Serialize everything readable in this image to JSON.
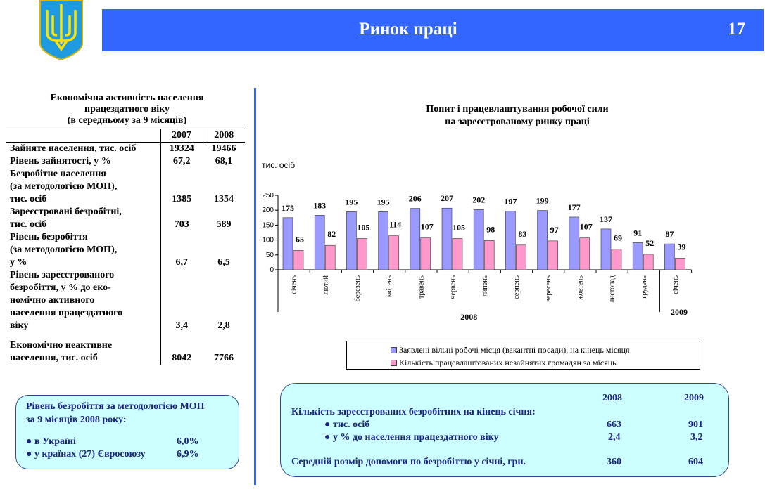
{
  "header": {
    "title": "Ринок праці",
    "page_number": "17"
  },
  "left_table": {
    "title": [
      "Економічна активність населення",
      "працездатного віку",
      "(в середньому за 9 місяців)"
    ],
    "columns": [
      "2007",
      "2008"
    ],
    "rows": [
      {
        "label": [
          "Зайняте населення, тис. осіб"
        ],
        "v2007": "19324",
        "v2008": "19466"
      },
      {
        "label": [
          "Рівень зайнятості, у %"
        ],
        "v2007": "67,2",
        "v2008": "68,1"
      },
      {
        "label": [
          "Безробітне населення",
          "(за методологією МОП),",
          "тис. осіб"
        ],
        "v2007": "1385",
        "v2008": "1354"
      },
      {
        "label": [
          "Зареєстровані безробітні,",
          "тис. осіб"
        ],
        "v2007": "703",
        "v2008": "589"
      },
      {
        "label": [
          "Рівень безробіття",
          "(за методологією МОП),",
          " у %"
        ],
        "v2007": "6,7",
        "v2008": "6,5"
      },
      {
        "label": [
          "Рівень зареєстрованого",
          "безробіття, у % до еко-",
          "номічно активного",
          "населення працездатного",
          "віку"
        ],
        "v2007": "3,4",
        "v2008": "2,8"
      },
      {
        "label": [
          "Економічно неактивне",
          "населення, тис. осіб"
        ],
        "v2007": "8042",
        "v2008": "7766"
      }
    ]
  },
  "left_box": {
    "title": [
      "Рівень безробіття за методологією МОП",
      "за  9 місяців 2008 року:"
    ],
    "items": [
      {
        "label": "● в Україні",
        "value": "6,0%"
      },
      {
        "label": "● у країнах (27) Євросоюзу",
        "value": "6,9%"
      }
    ]
  },
  "chart_data": {
    "type": "bar",
    "title": [
      "Попит і працевлаштування робочої сили",
      "на зареєстрованому ринку праці"
    ],
    "ylabel": "тис. осіб",
    "ylim": [
      0,
      250
    ],
    "yticks": [
      0,
      50,
      100,
      150,
      200,
      250
    ],
    "categories": [
      "січень",
      "лютий",
      "березень",
      "квітень",
      "травень",
      "червень",
      "липень",
      "серпень",
      "вересень",
      "жовтень",
      "листопад",
      "грудень",
      "січень"
    ],
    "year_groups": [
      {
        "label": "2008",
        "count": 12
      },
      {
        "label": "2009",
        "count": 1
      }
    ],
    "series": [
      {
        "name": "Заявлені вільні робочі місця (вакантні посади), на кінець місяця",
        "color": "#9999ff",
        "values": [
          175,
          183,
          195,
          195,
          206,
          207,
          202,
          197,
          199,
          177,
          137,
          91,
          87
        ]
      },
      {
        "name": "Кількість працевлаштованих незайнятих громадян за місяць",
        "color": "#ff99cc",
        "values": [
          65,
          82,
          105,
          114,
          107,
          105,
          98,
          83,
          97,
          107,
          69,
          52,
          39
        ]
      }
    ],
    "legend": "bottom",
    "grid": false
  },
  "right_box": {
    "columns": [
      "2008",
      "2009"
    ],
    "heading": "Кількість зареєстрованих безробітних на кінець січня:",
    "rows": [
      {
        "label": "● тис. осіб",
        "v2008": "663",
        "v2009": "901"
      },
      {
        "label": "● у % до населення працездатного віку",
        "v2008": "2,4",
        "v2009": "3,2"
      },
      {
        "label": "Середній розмір допомоги по безробіттю у січні, грн.",
        "v2008": "360",
        "v2009": "604"
      }
    ]
  }
}
